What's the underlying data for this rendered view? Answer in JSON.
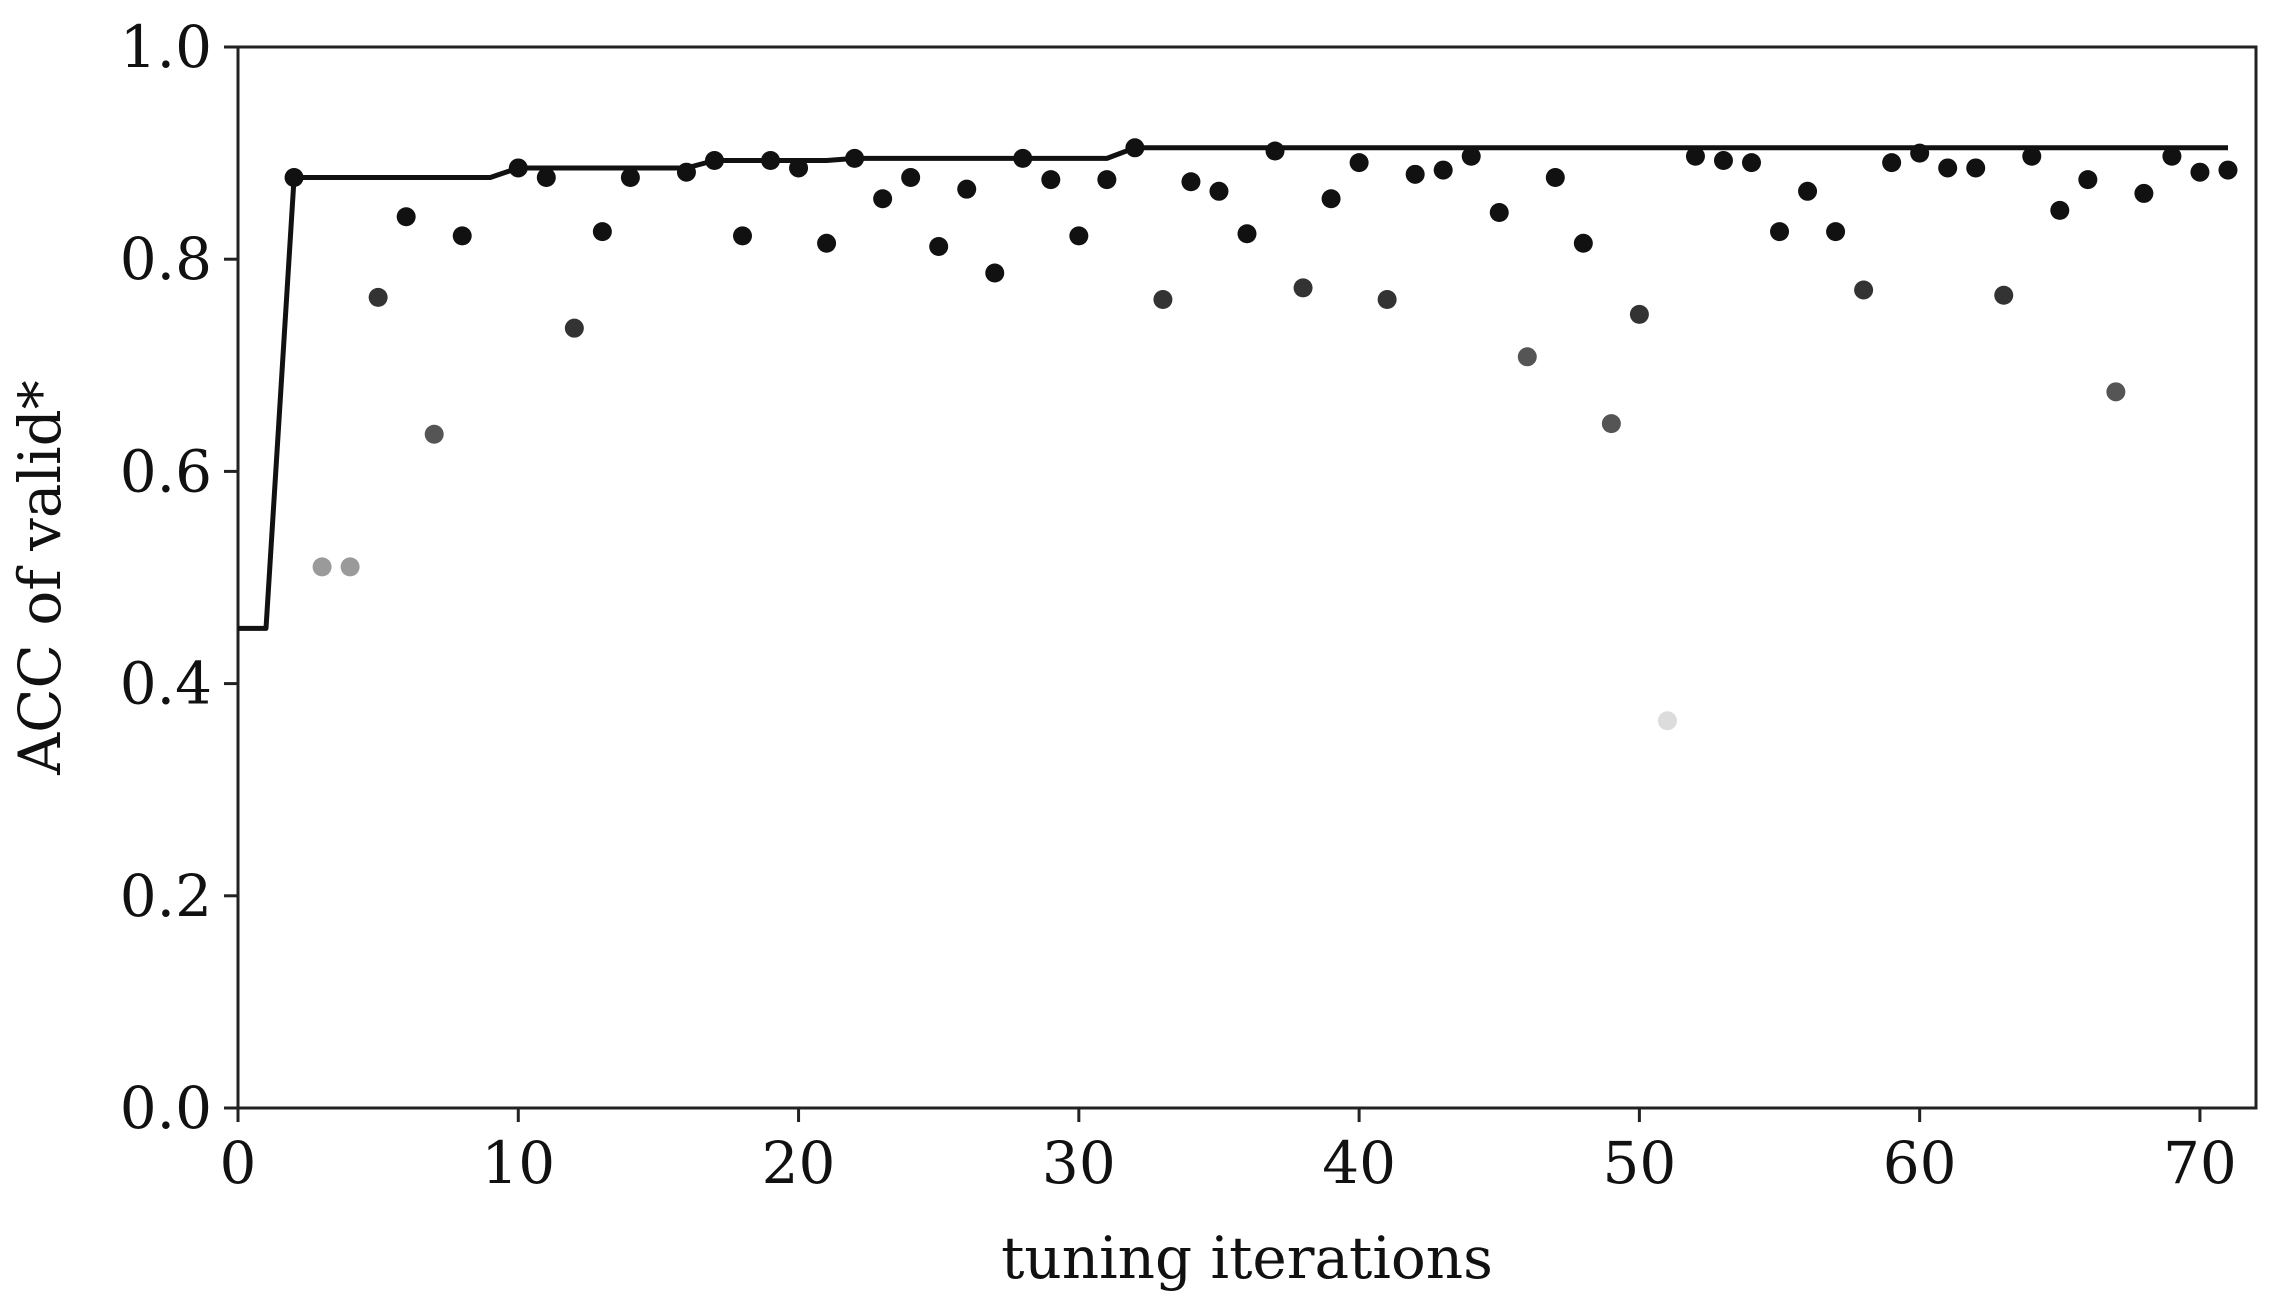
{
  "chart_data": {
    "type": "scatter",
    "xlabel": "tuning iterations",
    "ylabel": "ACC of valid*",
    "xlim": [
      0,
      72
    ],
    "ylim": [
      0.0,
      1.0
    ],
    "xticks": [
      0,
      10,
      20,
      30,
      40,
      50,
      60,
      70
    ],
    "yticks": [
      0.0,
      0.2,
      0.4,
      0.6,
      0.8,
      1.0
    ],
    "xtick_labels": [
      "0",
      "10",
      "20",
      "30",
      "40",
      "50",
      "60",
      "70"
    ],
    "ytick_labels": [
      "0.0",
      "0.2",
      "0.4",
      "0.6",
      "0.8",
      "1.0"
    ],
    "grid": false,
    "colors": {
      "best_line": "#111111",
      "point_high": "#111111",
      "point_mid": "#555555",
      "point_low": "#9a9a9a",
      "point_lowest": "#dcdcdc"
    },
    "series": [
      {
        "type": "scatter",
        "points": [
          {
            "x": 2,
            "y": 0.877
          },
          {
            "x": 3,
            "y": 0.51
          },
          {
            "x": 4,
            "y": 0.51
          },
          {
            "x": 5,
            "y": 0.764
          },
          {
            "x": 6,
            "y": 0.84
          },
          {
            "x": 7,
            "y": 0.635
          },
          {
            "x": 8,
            "y": 0.822
          },
          {
            "x": 10,
            "y": 0.886
          },
          {
            "x": 11,
            "y": 0.877
          },
          {
            "x": 12,
            "y": 0.735
          },
          {
            "x": 13,
            "y": 0.826
          },
          {
            "x": 14,
            "y": 0.877
          },
          {
            "x": 16,
            "y": 0.882
          },
          {
            "x": 17,
            "y": 0.893
          },
          {
            "x": 18,
            "y": 0.822
          },
          {
            "x": 19,
            "y": 0.893
          },
          {
            "x": 20,
            "y": 0.886
          },
          {
            "x": 21,
            "y": 0.815
          },
          {
            "x": 22,
            "y": 0.895
          },
          {
            "x": 23,
            "y": 0.857
          },
          {
            "x": 24,
            "y": 0.877
          },
          {
            "x": 25,
            "y": 0.812
          },
          {
            "x": 26,
            "y": 0.866
          },
          {
            "x": 27,
            "y": 0.787
          },
          {
            "x": 28,
            "y": 0.895
          },
          {
            "x": 29,
            "y": 0.875
          },
          {
            "x": 30,
            "y": 0.822
          },
          {
            "x": 31,
            "y": 0.875
          },
          {
            "x": 32,
            "y": 0.905
          },
          {
            "x": 33,
            "y": 0.762
          },
          {
            "x": 34,
            "y": 0.873
          },
          {
            "x": 35,
            "y": 0.864
          },
          {
            "x": 36,
            "y": 0.824
          },
          {
            "x": 37,
            "y": 0.902
          },
          {
            "x": 38,
            "y": 0.773
          },
          {
            "x": 39,
            "y": 0.857
          },
          {
            "x": 40,
            "y": 0.891
          },
          {
            "x": 41,
            "y": 0.762
          },
          {
            "x": 42,
            "y": 0.88
          },
          {
            "x": 43,
            "y": 0.884
          },
          {
            "x": 44,
            "y": 0.897
          },
          {
            "x": 45,
            "y": 0.844
          },
          {
            "x": 46,
            "y": 0.708
          },
          {
            "x": 47,
            "y": 0.877
          },
          {
            "x": 48,
            "y": 0.815
          },
          {
            "x": 49,
            "y": 0.645
          },
          {
            "x": 50,
            "y": 0.748
          },
          {
            "x": 51,
            "y": 0.365
          },
          {
            "x": 52,
            "y": 0.897
          },
          {
            "x": 53,
            "y": 0.893
          },
          {
            "x": 54,
            "y": 0.891
          },
          {
            "x": 55,
            "y": 0.826
          },
          {
            "x": 56,
            "y": 0.864
          },
          {
            "x": 57,
            "y": 0.826
          },
          {
            "x": 58,
            "y": 0.771
          },
          {
            "x": 59,
            "y": 0.891
          },
          {
            "x": 60,
            "y": 0.9
          },
          {
            "x": 61,
            "y": 0.886
          },
          {
            "x": 62,
            "y": 0.886
          },
          {
            "x": 63,
            "y": 0.766
          },
          {
            "x": 64,
            "y": 0.897
          },
          {
            "x": 65,
            "y": 0.846
          },
          {
            "x": 66,
            "y": 0.875
          },
          {
            "x": 67,
            "y": 0.675
          },
          {
            "x": 68,
            "y": 0.862
          },
          {
            "x": 69,
            "y": 0.897
          },
          {
            "x": 70,
            "y": 0.882
          },
          {
            "x": 71,
            "y": 0.884
          }
        ]
      },
      {
        "type": "line",
        "points": [
          {
            "x": 0,
            "y": 0.452
          },
          {
            "x": 1,
            "y": 0.452
          },
          {
            "x": 2,
            "y": 0.877
          },
          {
            "x": 9,
            "y": 0.877
          },
          {
            "x": 10,
            "y": 0.886
          },
          {
            "x": 16,
            "y": 0.886
          },
          {
            "x": 17,
            "y": 0.893
          },
          {
            "x": 21,
            "y": 0.893
          },
          {
            "x": 22,
            "y": 0.895
          },
          {
            "x": 31,
            "y": 0.895
          },
          {
            "x": 32,
            "y": 0.905
          },
          {
            "x": 71,
            "y": 0.905
          }
        ]
      }
    ]
  }
}
